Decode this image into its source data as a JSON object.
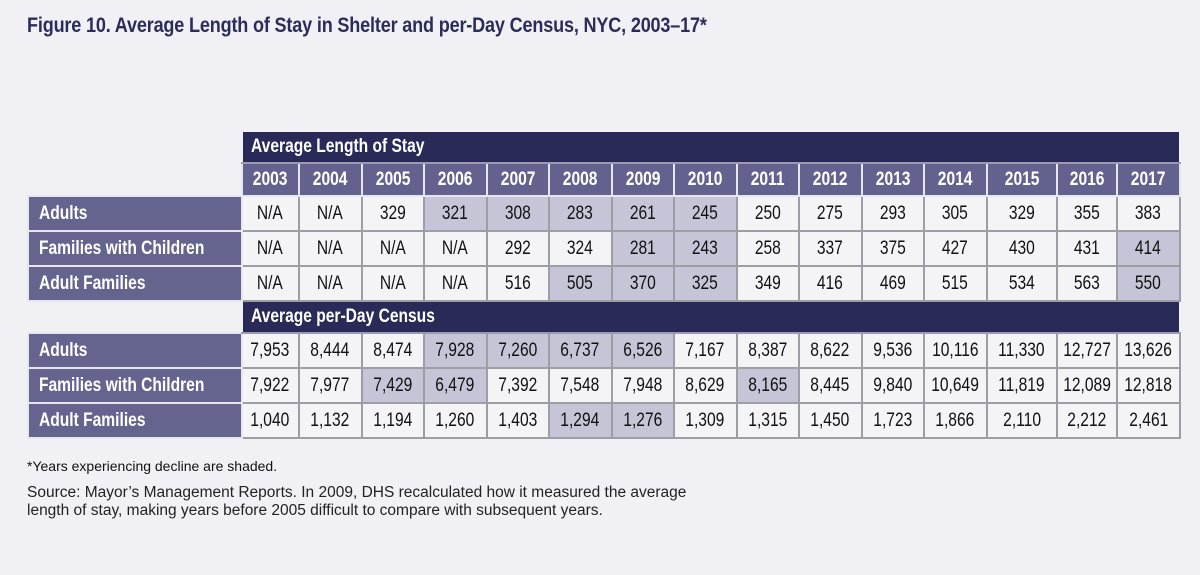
{
  "title": "Figure 10. Average Length of Stay in Shelter and per-Day Census, NYC, 2003–17*",
  "colors": {
    "title": "#2b2c5a",
    "section_header": "#2a2a58",
    "year_header": "#63628f",
    "row_label": "#65648f",
    "shaded": "#c6c5d8",
    "cell": "#f4f4f7"
  },
  "chart_data": {
    "type": "table",
    "title": "Figure 10. Average Length of Stay in Shelter and per-Day Census, NYC, 2003–17*",
    "years": [
      "2003",
      "2004",
      "2005",
      "2006",
      "2007",
      "2008",
      "2009",
      "2010",
      "2011",
      "2012",
      "2013",
      "2014",
      "2015",
      "2016",
      "2017"
    ],
    "sections": [
      {
        "header": "Average Length of Stay",
        "rows": [
          {
            "label": "Adults",
            "values": [
              "N/A",
              "N/A",
              "329",
              "321",
              "308",
              "283",
              "261",
              "245",
              "250",
              "275",
              "293",
              "305",
              "329",
              "355",
              "383"
            ],
            "shaded": [
              3,
              4,
              5,
              6,
              7
            ]
          },
          {
            "label": "Families with Children",
            "values": [
              "N/A",
              "N/A",
              "N/A",
              "N/A",
              "292",
              "324",
              "281",
              "243",
              "258",
              "337",
              "375",
              "427",
              "430",
              "431",
              "414"
            ],
            "shaded": [
              6,
              7,
              14
            ]
          },
          {
            "label": "Adult Families",
            "values": [
              "N/A",
              "N/A",
              "N/A",
              "N/A",
              "516",
              "505",
              "370",
              "325",
              "349",
              "416",
              "469",
              "515",
              "534",
              "563",
              "550"
            ],
            "shaded": [
              5,
              6,
              7,
              14
            ]
          }
        ]
      },
      {
        "header": "Average per-Day Census",
        "rows": [
          {
            "label": "Adults",
            "values": [
              "7,953",
              "8,444",
              "8,474",
              "7,928",
              "7,260",
              "6,737",
              "6,526",
              "7,167",
              "8,387",
              "8,622",
              "9,536",
              "10,116",
              "11,330",
              "12,727",
              "13,626"
            ],
            "shaded": [
              3,
              4,
              5,
              6
            ]
          },
          {
            "label": "Families with Children",
            "values": [
              "7,922",
              "7,977",
              "7,429",
              "6,479",
              "7,392",
              "7,548",
              "7,948",
              "8,629",
              "8,165",
              "8,445",
              "9,840",
              "10,649",
              "11,819",
              "12,089",
              "12,818"
            ],
            "shaded": [
              2,
              3,
              8
            ]
          },
          {
            "label": "Adult Families",
            "values": [
              "1,040",
              "1,132",
              "1,194",
              "1,260",
              "1,403",
              "1,294",
              "1,276",
              "1,309",
              "1,315",
              "1,450",
              "1,723",
              "1,866",
              "2,110",
              "2,212",
              "2,461"
            ],
            "shaded": [
              5,
              6
            ]
          }
        ]
      }
    ]
  },
  "footnote": "*Years experiencing decline are shaded.",
  "source": "Source: Mayor’s Management Reports. In 2009, DHS recalculated how it measured the average length of stay, making years before 2005 difficult to compare with subsequent years."
}
